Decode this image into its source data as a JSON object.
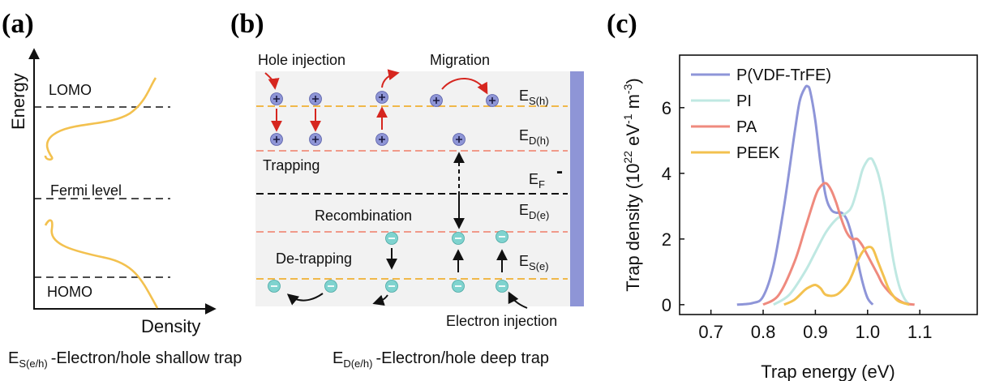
{
  "panel_a": {
    "label": "(a)",
    "y_axis": "Energy",
    "x_axis": "Density",
    "lomo": "LOMO",
    "fermi": "Fermi level",
    "homo": "HOMO"
  },
  "panel_b": {
    "label": "(b)",
    "hole_injection": "Hole injection",
    "migration": "Migration",
    "trapping": "Trapping",
    "recombination": "Recombination",
    "de_trapping": "De-trapping",
    "electron_injection": "Electron injection",
    "e_s_h": "E",
    "e_s_h_sub": "S(h)",
    "e_d_h": "E",
    "e_d_h_sub": "D(h)",
    "e_f": "E",
    "e_f_sub": "F",
    "e_d_e": "E",
    "e_d_e_sub": "D(e)",
    "e_s_e": "E",
    "e_s_e_sub": "S(e)",
    "electrode_sign": "-",
    "colors": {
      "hole": "#8e95d6",
      "electron": "#7fd3cf",
      "shallow_line": "#f0b84a",
      "deep_line": "#f09a8a",
      "electrode": "#8e95d6",
      "arrow_red": "#d6261f"
    }
  },
  "legend_bottom": {
    "shallow_E": "E",
    "shallow_sub": "S(e/h)",
    "shallow_text": "-Electron/hole shallow trap",
    "deep_E": "E",
    "deep_sub": "D(e/h)",
    "deep_text": "-Electron/hole deep trap"
  },
  "panel_c": {
    "label": "(c)"
  },
  "chart_data": {
    "type": "line",
    "title": "",
    "xlabel": "Trap energy (eV)",
    "ylabel_main": "Trap density (10",
    "ylabel_sup1": "22",
    "ylabel_mid": " eV",
    "ylabel_sup2": "-1",
    "ylabel_mid2": " m",
    "ylabel_sup3": "-3",
    "ylabel_end": ")",
    "xlim": [
      0.64,
      1.21
    ],
    "ylim": [
      -0.3,
      7.6
    ],
    "xticks": [
      "0.7",
      "0.8",
      "0.9",
      "1.0",
      "1.1"
    ],
    "xtick_values": [
      0.7,
      0.8,
      0.9,
      1.0,
      1.1
    ],
    "yticks": [
      "0",
      "2",
      "4",
      "6"
    ],
    "ytick_values": [
      0,
      2,
      4,
      6
    ],
    "legend_position": "top-left",
    "series": [
      {
        "name": "P(VDF-TrFE)",
        "color": "#8e95d8",
        "x": [
          0.75,
          0.78,
          0.8,
          0.82,
          0.84,
          0.86,
          0.87,
          0.88,
          0.885,
          0.89,
          0.9,
          0.91,
          0.92,
          0.93,
          0.94,
          0.95,
          0.96,
          0.97,
          0.98,
          0.99,
          1.0,
          1.01
        ],
        "y": [
          0.0,
          0.05,
          0.25,
          1.2,
          3.0,
          5.2,
          6.2,
          6.6,
          6.65,
          6.5,
          5.6,
          4.3,
          3.3,
          2.9,
          2.8,
          2.8,
          2.6,
          2.1,
          1.4,
          0.7,
          0.2,
          0.0
        ]
      },
      {
        "name": "PI",
        "color": "#bfe8e2",
        "x": [
          0.82,
          0.85,
          0.88,
          0.9,
          0.92,
          0.94,
          0.96,
          0.97,
          0.98,
          0.99,
          1.0,
          1.005,
          1.01,
          1.02,
          1.03,
          1.04,
          1.05,
          1.06,
          1.07,
          1.08
        ],
        "y": [
          0.0,
          0.3,
          1.0,
          1.6,
          2.2,
          2.6,
          2.8,
          3.0,
          3.5,
          4.1,
          4.4,
          4.45,
          4.4,
          4.0,
          3.3,
          2.3,
          1.3,
          0.6,
          0.2,
          0.0
        ]
      },
      {
        "name": "PA",
        "color": "#ef8a7e",
        "x": [
          0.8,
          0.83,
          0.86,
          0.88,
          0.9,
          0.91,
          0.92,
          0.93,
          0.94,
          0.95,
          0.96,
          0.97,
          0.98,
          0.99,
          1.0,
          1.01,
          1.02,
          1.03,
          1.05,
          1.07,
          1.09
        ],
        "y": [
          0.0,
          0.3,
          1.3,
          2.3,
          3.3,
          3.6,
          3.7,
          3.5,
          3.1,
          2.6,
          2.2,
          2.0,
          2.0,
          1.8,
          1.5,
          1.2,
          0.9,
          0.6,
          0.25,
          0.05,
          0.0
        ]
      },
      {
        "name": "PEEK",
        "color": "#f3c14f",
        "x": [
          0.84,
          0.86,
          0.88,
          0.89,
          0.9,
          0.91,
          0.92,
          0.94,
          0.96,
          0.97,
          0.98,
          0.99,
          1.0,
          1.01,
          1.02,
          1.03,
          1.04,
          1.05,
          1.06,
          1.08
        ],
        "y": [
          0.0,
          0.15,
          0.45,
          0.55,
          0.6,
          0.5,
          0.3,
          0.3,
          0.6,
          0.9,
          1.3,
          1.6,
          1.75,
          1.7,
          1.3,
          0.9,
          0.5,
          0.25,
          0.1,
          0.0
        ]
      }
    ]
  }
}
